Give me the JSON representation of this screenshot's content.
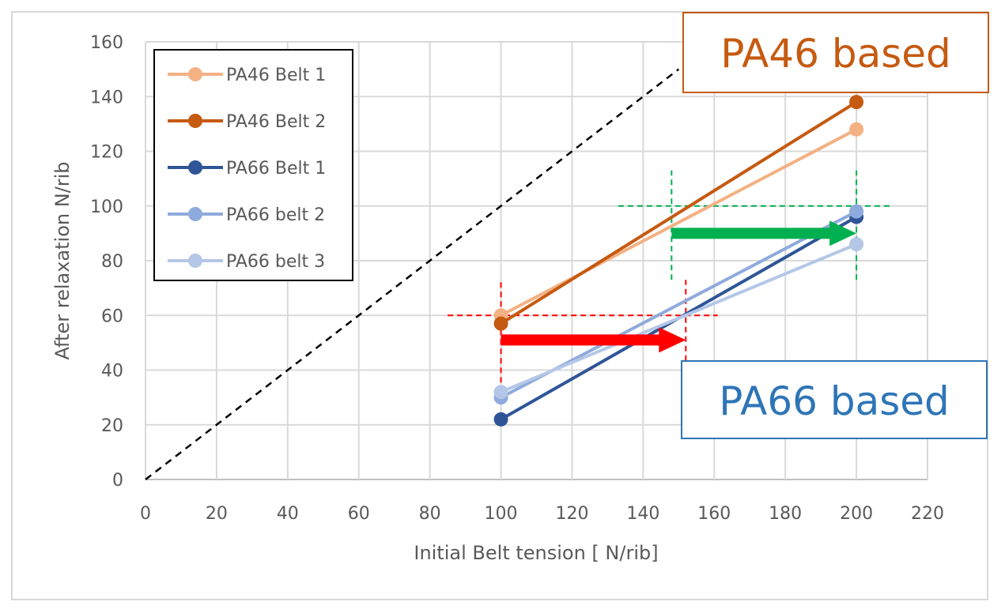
{
  "chart_data": {
    "type": "line",
    "title": "",
    "xlabel": "Initial Belt tension [ N/rib]",
    "ylabel": "After relaxation N/rib",
    "xlim": [
      0,
      220
    ],
    "ylim": [
      0,
      160
    ],
    "x_ticks": [
      0,
      20,
      40,
      60,
      80,
      100,
      120,
      140,
      160,
      180,
      200,
      220
    ],
    "y_ticks": [
      0,
      20,
      40,
      60,
      80,
      100,
      120,
      140,
      160
    ],
    "grid": true,
    "legend_position": "top-left",
    "series": [
      {
        "name": "PA46 Belt 1",
        "color": "#f4b183",
        "x": [
          100,
          200
        ],
        "y": [
          60,
          128
        ]
      },
      {
        "name": "PA46 Belt 2",
        "color": "#c55a11",
        "x": [
          100,
          200
        ],
        "y": [
          57,
          138
        ]
      },
      {
        "name": "PA66 Belt 1",
        "color": "#2f5597",
        "x": [
          100,
          200
        ],
        "y": [
          22,
          96
        ]
      },
      {
        "name": "PA66 belt 2",
        "color": "#8faadc",
        "x": [
          100,
          200
        ],
        "y": [
          30,
          98
        ]
      },
      {
        "name": "PA66 belt 3",
        "color": "#b4c7e7",
        "x": [
          100,
          200
        ],
        "y": [
          32,
          86
        ]
      }
    ],
    "reference_line": {
      "style": "dashed",
      "color": "#000000",
      "x": [
        0,
        150
      ],
      "y": [
        0,
        150
      ]
    },
    "annotations": [
      {
        "type": "guide-v",
        "color": "#ff0000",
        "x": 100,
        "y_from": 32,
        "y_to": 73
      },
      {
        "type": "guide-v",
        "color": "#ff0000",
        "x": 152,
        "y_from": 33,
        "y_to": 73
      },
      {
        "type": "guide-h",
        "color": "#ff0000",
        "y": 60,
        "x_from": 85,
        "x_to": 161
      },
      {
        "type": "arrow",
        "color": "#ff0000",
        "y": 51,
        "x_from": 100,
        "x_to": 152
      },
      {
        "type": "guide-v",
        "color": "#00b050",
        "x": 148,
        "y_from": 73,
        "y_to": 113
      },
      {
        "type": "guide-v",
        "color": "#00b050",
        "x": 200,
        "y_from": 73,
        "y_to": 113
      },
      {
        "type": "guide-h",
        "color": "#00b050",
        "y": 100,
        "x_from": 133,
        "x_to": 210
      },
      {
        "type": "arrow",
        "color": "#00b050",
        "y": 90,
        "x_from": 148,
        "x_to": 200
      }
    ]
  },
  "callouts": {
    "pa46": {
      "text": "PA46 based",
      "color": "#c55a11"
    },
    "pa66": {
      "text": "PA66 based",
      "color": "#2e75b6"
    }
  }
}
